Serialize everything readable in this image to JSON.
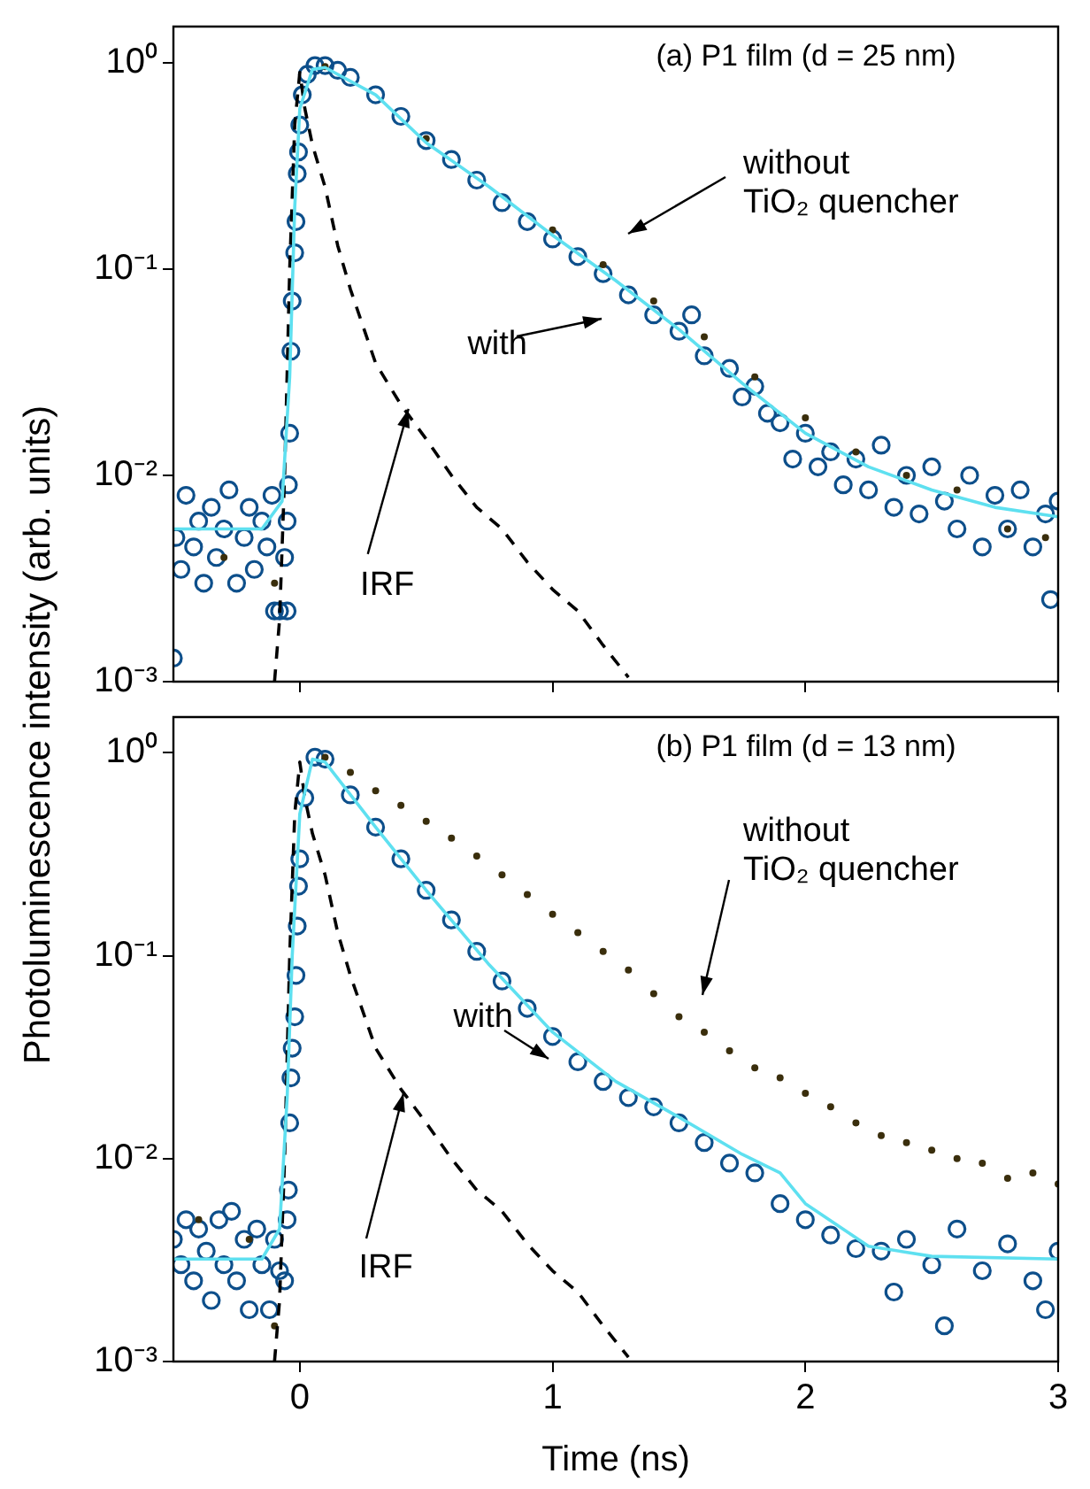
{
  "chart_data": [
    {
      "type": "scatter",
      "title": "(a) P1 film (d = 25 nm)",
      "ylabel": "Photoluminescence intensity (arb. units)",
      "log": "y",
      "grid": false,
      "legend": false,
      "tick_labels": "y",
      "xlim": [
        -0.5,
        3
      ],
      "xticks": [
        0,
        1,
        2,
        3
      ],
      "ylim": [
        0.001,
        1.5
      ],
      "yticks": [
        {
          "value": 1,
          "label": "10⁰"
        },
        {
          "value": 0.1,
          "label": "10⁻¹"
        },
        {
          "value": 0.01,
          "label": "10⁻²"
        },
        {
          "value": 0.001,
          "label": "10⁻³"
        }
      ],
      "annotations": [
        "without\nTiO₂ quencher",
        "with",
        {
          "text": "IRF",
          "x": 0.43,
          "y": 0.021
        }
      ],
      "series": [
        {
          "marker": "circle",
          "color": "#0d4f8b",
          "x": [
            -0.5,
            -0.49,
            -0.47,
            -0.45,
            -0.42,
            -0.4,
            -0.38,
            -0.35,
            -0.33,
            -0.3,
            -0.28,
            -0.25,
            -0.22,
            -0.2,
            -0.18,
            -0.15,
            -0.13,
            -0.11,
            -0.1,
            -0.08,
            -0.06,
            -0.05,
            -0.05,
            -0.045,
            -0.04,
            -0.035,
            -0.03,
            -0.02,
            -0.015,
            -0.01,
            -0.005,
            0,
            0.01,
            0.03,
            0.06,
            0.1,
            0.15,
            0.2,
            0.3,
            0.4,
            0.5,
            0.6,
            0.7,
            0.8,
            0.9,
            1.0,
            1.1,
            1.2,
            1.3,
            1.4,
            1.5,
            1.55,
            1.6,
            1.7,
            1.75,
            1.8,
            1.85,
            1.9,
            1.95,
            2.0,
            2.05,
            2.1,
            2.15,
            2.2,
            2.25,
            2.3,
            2.35,
            2.4,
            2.45,
            2.5,
            2.55,
            2.6,
            2.65,
            2.7,
            2.75,
            2.8,
            2.85,
            2.9,
            2.95,
            2.97,
            3.0
          ],
          "values": [
            0.0013,
            0.005,
            0.0035,
            0.008,
            0.0045,
            0.006,
            0.003,
            0.007,
            0.004,
            0.0055,
            0.0085,
            0.003,
            0.005,
            0.007,
            0.0035,
            0.006,
            0.0045,
            0.008,
            0.0022,
            0.0022,
            0.004,
            0.0022,
            0.006,
            0.009,
            0.016,
            0.04,
            0.07,
            0.12,
            0.17,
            0.29,
            0.37,
            0.5,
            0.7,
            0.88,
            0.97,
            0.97,
            0.92,
            0.85,
            0.7,
            0.55,
            0.42,
            0.34,
            0.27,
            0.21,
            0.17,
            0.14,
            0.115,
            0.095,
            0.075,
            0.06,
            0.05,
            0.06,
            0.038,
            0.033,
            0.024,
            0.027,
            0.02,
            0.018,
            0.012,
            0.016,
            0.011,
            0.013,
            0.009,
            0.012,
            0.0085,
            0.014,
            0.007,
            0.01,
            0.0065,
            0.011,
            0.0075,
            0.0055,
            0.01,
            0.0045,
            0.008,
            0.0055,
            0.0085,
            0.0045,
            0.0065,
            0.0025,
            0.0075
          ]
        },
        {
          "marker": "circle",
          "color": "#3a2e0c",
          "x": [
            -0.3,
            -0.1,
            0.1,
            0.5,
            1.0,
            1.2,
            1.4,
            1.6,
            1.8,
            2.0,
            2.2,
            2.4,
            2.6,
            2.8,
            2.95
          ],
          "values": [
            0.004,
            0.003,
            0.96,
            0.43,
            0.155,
            0.105,
            0.07,
            0.047,
            0.03,
            0.019,
            0.013,
            0.01,
            0.0085,
            0.0055,
            0.005
          ]
        },
        {
          "type": "line",
          "color": "#5ee0f0",
          "line_style": "solid",
          "x": [
            -0.5,
            -0.15,
            -0.07,
            -0.04,
            -0.02,
            0,
            0.05,
            0.1,
            0.3,
            0.5,
            0.75,
            1,
            1.25,
            1.5,
            1.75,
            2,
            2.25,
            2.5,
            2.75,
            3
          ],
          "values": [
            0.0055,
            0.0055,
            0.0075,
            0.03,
            0.2,
            0.6,
            0.93,
            0.95,
            0.7,
            0.41,
            0.25,
            0.146,
            0.088,
            0.051,
            0.028,
            0.016,
            0.011,
            0.0085,
            0.007,
            0.0063
          ]
        },
        {
          "type": "line",
          "color": "#000000",
          "line_style": "dashed",
          "x": [
            -0.1,
            -0.08,
            -0.06,
            -0.04,
            -0.02,
            0,
            0.02,
            0.05,
            0.1,
            0.15,
            0.2,
            0.3,
            0.4,
            0.5,
            0.6,
            0.7,
            0.8,
            0.9,
            1.0,
            1.1,
            1.2,
            1.3
          ],
          "values": [
            0.001,
            0.002,
            0.01,
            0.1,
            0.5,
            0.9,
            0.6,
            0.4,
            0.25,
            0.13,
            0.08,
            0.035,
            0.022,
            0.015,
            0.01,
            0.007,
            0.0055,
            0.0038,
            0.0028,
            0.0022,
            0.0015,
            0.00105
          ]
        }
      ]
    },
    {
      "type": "scatter",
      "title": "(b) P1 film (d = 13 nm)",
      "xlabel": "Time (ns)",
      "log": "y",
      "grid": false,
      "legend": false,
      "xlim": [
        -0.5,
        3
      ],
      "xticks": [
        0,
        1,
        2,
        3
      ],
      "ylim": [
        0.001,
        1.5
      ],
      "yticks": [
        {
          "value": 1,
          "label": "10⁰"
        },
        {
          "value": 0.1,
          "label": "10⁻¹"
        },
        {
          "value": 0.01,
          "label": "10⁻²"
        },
        {
          "value": 0.001,
          "label": "10⁻³"
        }
      ],
      "annotations": [
        "without\nTiO₂ quencher",
        "with",
        {
          "text": "IRF",
          "x": 0.41,
          "y": 0.021
        }
      ],
      "series": [
        {
          "marker": "circle",
          "color": "#0d4f8b",
          "x": [
            -0.5,
            -0.47,
            -0.45,
            -0.42,
            -0.4,
            -0.37,
            -0.35,
            -0.32,
            -0.3,
            -0.27,
            -0.25,
            -0.22,
            -0.2,
            -0.17,
            -0.15,
            -0.12,
            -0.1,
            -0.08,
            -0.06,
            -0.05,
            -0.045,
            -0.04,
            -0.035,
            -0.03,
            -0.02,
            -0.015,
            -0.01,
            -0.005,
            0,
            0.02,
            0.06,
            0.1,
            0.2,
            0.3,
            0.4,
            0.5,
            0.6,
            0.7,
            0.8,
            0.9,
            1.0,
            1.1,
            1.2,
            1.3,
            1.4,
            1.5,
            1.6,
            1.7,
            1.8,
            1.9,
            2.0,
            2.1,
            2.2,
            2.3,
            2.35,
            2.4,
            2.5,
            2.55,
            2.6,
            2.7,
            2.8,
            2.9,
            2.95,
            3.0
          ],
          "values": [
            0.004,
            0.003,
            0.005,
            0.0025,
            0.0045,
            0.0035,
            0.002,
            0.005,
            0.003,
            0.0055,
            0.0025,
            0.004,
            0.0018,
            0.0045,
            0.003,
            0.0018,
            0.004,
            0.0028,
            0.0025,
            0.005,
            0.007,
            0.015,
            0.025,
            0.035,
            0.05,
            0.08,
            0.14,
            0.22,
            0.3,
            0.6,
            0.95,
            0.93,
            0.62,
            0.43,
            0.3,
            0.21,
            0.15,
            0.105,
            0.075,
            0.055,
            0.04,
            0.03,
            0.024,
            0.02,
            0.018,
            0.015,
            0.012,
            0.0095,
            0.0085,
            0.006,
            0.005,
            0.0042,
            0.0036,
            0.0035,
            0.0022,
            0.004,
            0.003,
            0.0015,
            0.0045,
            0.0028,
            0.0038,
            0.0025,
            0.0018,
            0.0035
          ]
        },
        {
          "marker": "circle",
          "color": "#3a2e0c",
          "x": [
            -0.4,
            -0.2,
            -0.1,
            0.1,
            0.2,
            0.3,
            0.4,
            0.5,
            0.6,
            0.7,
            0.8,
            0.9,
            1.0,
            1.1,
            1.2,
            1.3,
            1.4,
            1.5,
            1.6,
            1.7,
            1.8,
            1.9,
            2.0,
            2.1,
            2.2,
            2.3,
            2.4,
            2.5,
            2.6,
            2.7,
            2.8,
            2.9,
            3.0
          ],
          "values": [
            0.005,
            0.004,
            0.0015,
            0.95,
            0.8,
            0.65,
            0.55,
            0.46,
            0.38,
            0.31,
            0.25,
            0.2,
            0.16,
            0.13,
            0.105,
            0.085,
            0.065,
            0.05,
            0.042,
            0.034,
            0.028,
            0.025,
            0.021,
            0.018,
            0.015,
            0.013,
            0.012,
            0.011,
            0.01,
            0.0095,
            0.008,
            0.0085,
            0.0075
          ]
        },
        {
          "type": "line",
          "color": "#5ee0f0",
          "line_style": "solid",
          "x": [
            -0.5,
            -0.15,
            -0.08,
            -0.05,
            -0.03,
            0,
            0.05,
            0.1,
            0.3,
            0.5,
            0.75,
            1,
            1.25,
            1.5,
            1.75,
            1.9,
            2,
            2.25,
            2.5,
            3
          ],
          "values": [
            0.0032,
            0.0032,
            0.0045,
            0.02,
            0.1,
            0.5,
            0.93,
            0.9,
            0.43,
            0.21,
            0.09,
            0.042,
            0.024,
            0.016,
            0.0105,
            0.0085,
            0.006,
            0.0037,
            0.0033,
            0.0032
          ]
        },
        {
          "type": "line",
          "color": "#000000",
          "line_style": "dashed",
          "x": [
            -0.1,
            -0.08,
            -0.06,
            -0.04,
            -0.02,
            0,
            0.02,
            0.05,
            0.1,
            0.15,
            0.2,
            0.3,
            0.4,
            0.5,
            0.6,
            0.7,
            0.8,
            0.9,
            1.0,
            1.1,
            1.2,
            1.3
          ],
          "values": [
            0.001,
            0.002,
            0.01,
            0.1,
            0.5,
            0.9,
            0.6,
            0.4,
            0.25,
            0.13,
            0.08,
            0.035,
            0.022,
            0.015,
            0.01,
            0.007,
            0.0055,
            0.0038,
            0.0028,
            0.0022,
            0.0015,
            0.00105
          ]
        }
      ]
    }
  ]
}
